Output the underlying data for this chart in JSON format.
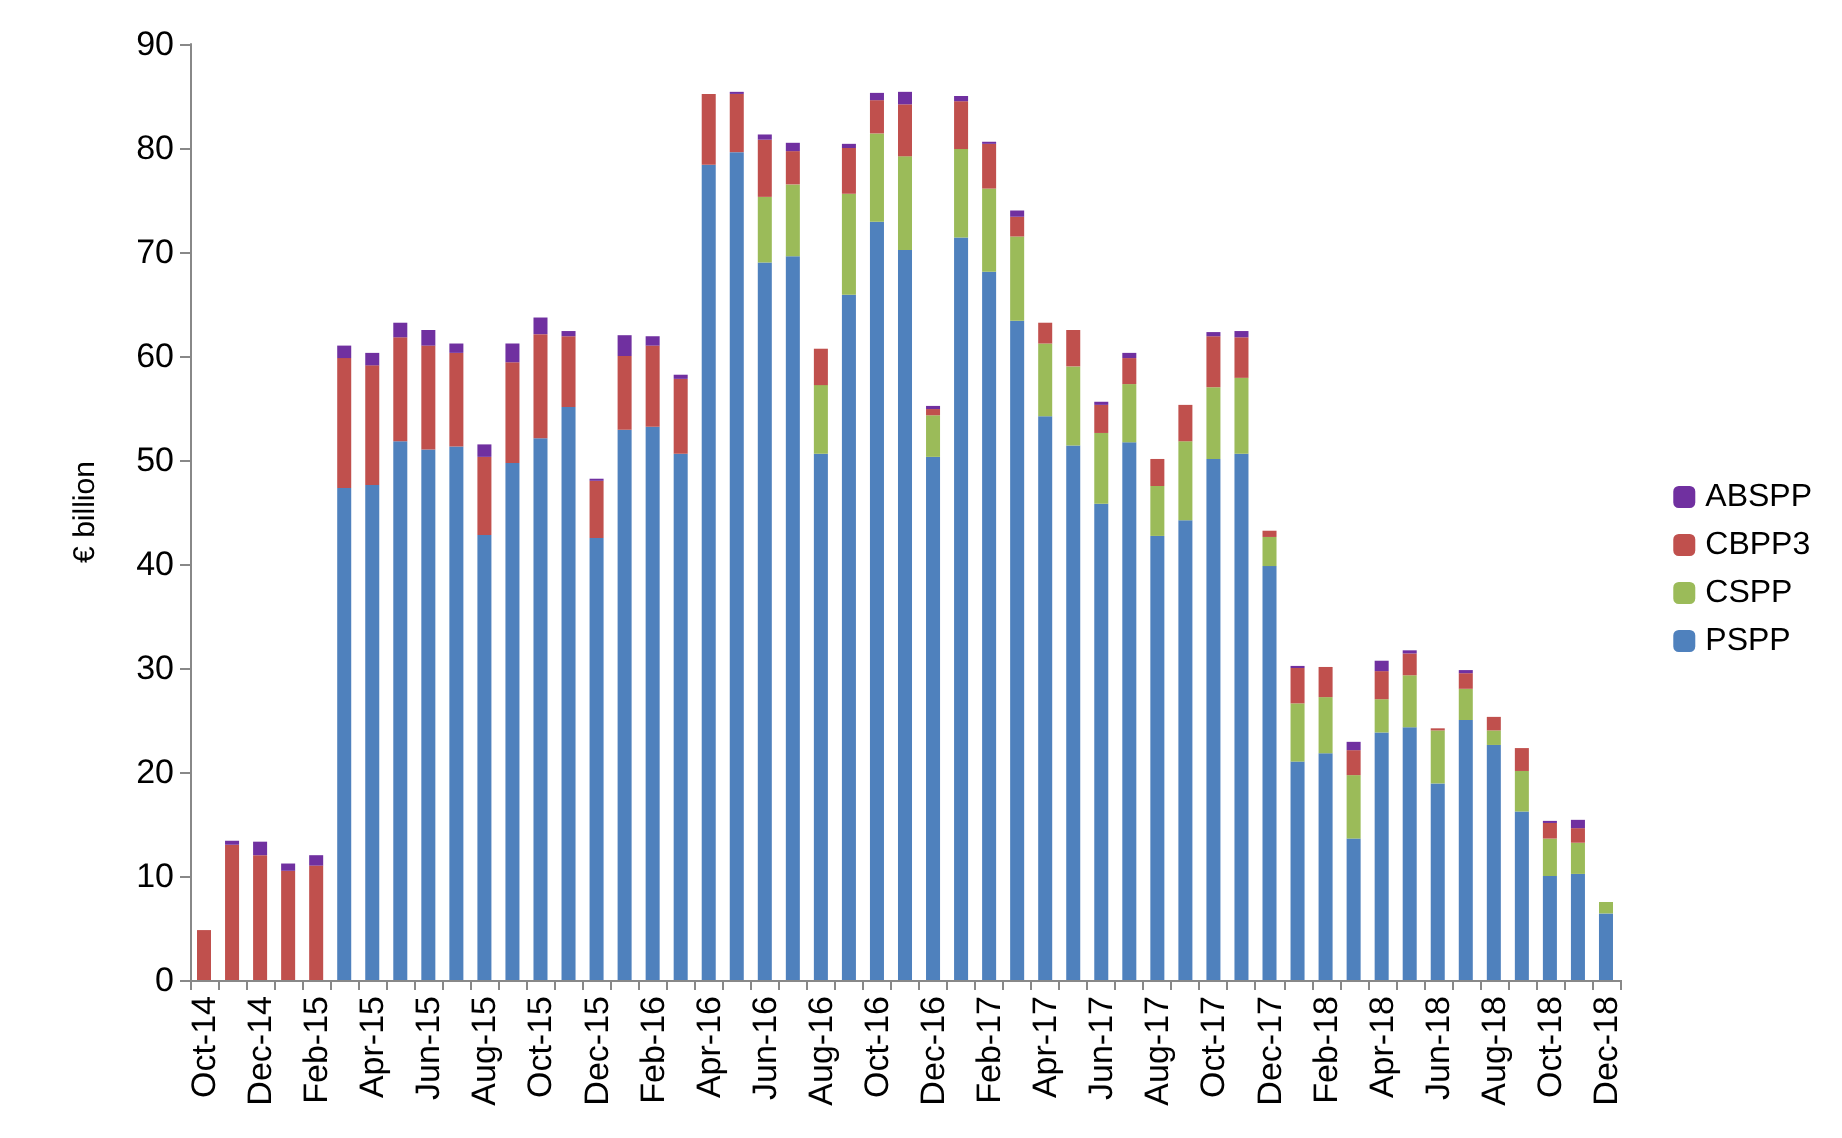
{
  "chart_data": {
    "type": "bar",
    "stacked": true,
    "ylabel": "€ billion",
    "ylim": [
      0,
      90
    ],
    "yticks": [
      0,
      10,
      20,
      30,
      40,
      50,
      60,
      70,
      80,
      90
    ],
    "grid": false,
    "legend": "right",
    "categories": [
      "Oct-14",
      null,
      "Dec-14",
      null,
      "Feb-15",
      null,
      "Apr-15",
      null,
      "Jun-15",
      null,
      "Aug-15",
      null,
      "Oct-15",
      null,
      "Dec-15",
      null,
      "Feb-16",
      null,
      "Apr-16",
      null,
      "Jun-16",
      null,
      "Aug-16",
      null,
      "Oct-16",
      null,
      "Dec-16",
      null,
      "Feb-17",
      null,
      "Apr-17",
      null,
      "Jun-17",
      null,
      "Aug-17",
      null,
      "Oct-17",
      null,
      "Dec-17",
      null,
      "Feb-18",
      null,
      "Apr-18",
      null,
      "Jun-18",
      null,
      "Aug-18",
      null,
      "Oct-18",
      null,
      "Dec-18"
    ],
    "series": [
      {
        "name": "PSPP",
        "color": "#4f81bd",
        "values": [
          0,
          0,
          0,
          0,
          0,
          47.3,
          47.6,
          51.8,
          51,
          51.3,
          42.8,
          49.7,
          52.1,
          55.1,
          42.5,
          52.9,
          53.2,
          50.6,
          78.4,
          79.6,
          69,
          69.6,
          50.6,
          65.9,
          72.9,
          70.2,
          50.3,
          71.4,
          68.1,
          63.4,
          54.2,
          51.4,
          45.8,
          51.7,
          42.7,
          44.2,
          50.1,
          50.6,
          39.8,
          21,
          21.8,
          13.6,
          23.8,
          24.3,
          18.9,
          25,
          22.6,
          16.2,
          10,
          10.2,
          6.4
        ]
      },
      {
        "name": "CSPP",
        "color": "#9bbb59",
        "values": [
          0,
          0,
          0,
          0,
          0,
          0,
          0,
          0,
          0,
          0,
          0,
          0,
          0,
          0,
          0,
          0,
          0,
          0,
          0,
          0,
          6.3,
          6.9,
          6.6,
          9.7,
          8.5,
          9,
          4,
          8.5,
          8,
          8.1,
          7,
          7.6,
          6.8,
          5.6,
          4.8,
          7.6,
          6.9,
          7.3,
          2.8,
          5.6,
          5.4,
          6.1,
          3.2,
          5,
          5.1,
          3,
          1.4,
          3.9,
          3.6,
          3,
          1.1
        ]
      },
      {
        "name": "CBPP3",
        "color": "#c0504d",
        "values": [
          4.8,
          13,
          12,
          10.5,
          11,
          12.5,
          11.5,
          10,
          10,
          9,
          7.5,
          9.7,
          10,
          6.8,
          5.5,
          7.1,
          7.8,
          7.2,
          6.8,
          5.6,
          5.5,
          3.2,
          3.5,
          4.4,
          3.2,
          5,
          0.6,
          4.6,
          4.3,
          1.9,
          2,
          3.5,
          2.7,
          2.5,
          2.6,
          3.5,
          4.9,
          3.9,
          0.6,
          3.4,
          2.9,
          2.4,
          2.7,
          2.1,
          0.2,
          1.5,
          1.3,
          2.2,
          1.5,
          1.4,
          0
        ]
      },
      {
        "name": "ABSPP",
        "color": "#7030a0",
        "values": [
          0,
          0.4,
          1.3,
          0.7,
          1,
          1.2,
          1.2,
          1.4,
          1.5,
          0.9,
          1.2,
          1.8,
          1.6,
          0.5,
          0.2,
          2,
          0.9,
          0.4,
          0,
          0.2,
          0.5,
          0.8,
          0,
          0.4,
          0.7,
          1.2,
          0.3,
          0.5,
          0.2,
          0.6,
          null,
          0,
          0.3,
          0.5,
          0,
          null,
          0.4,
          0.6,
          null,
          0.2,
          0,
          0.8,
          1,
          0.3,
          0,
          0.3,
          null,
          null,
          0.2,
          0.8,
          null
        ]
      }
    ]
  }
}
